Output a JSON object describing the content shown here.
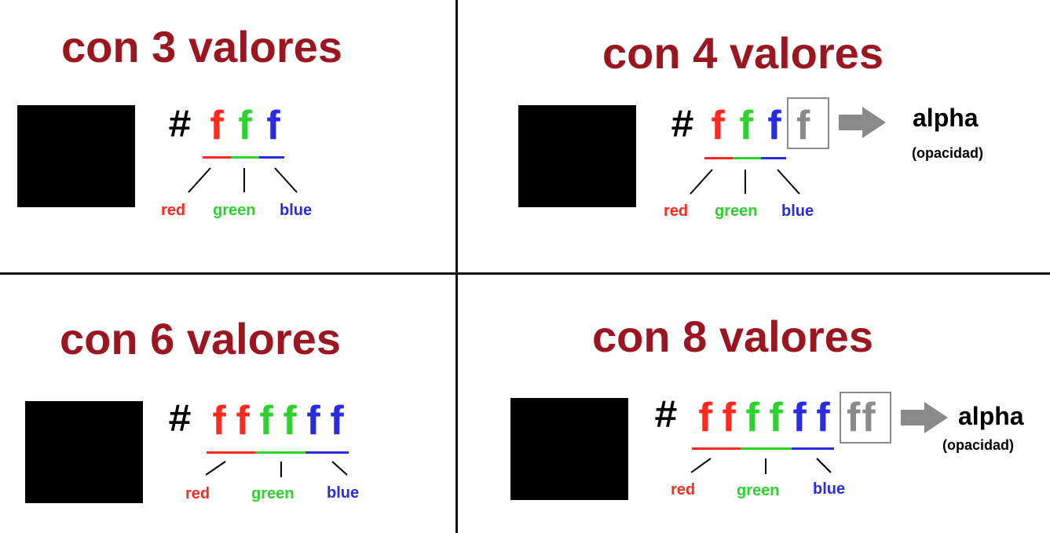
{
  "colors": {
    "red": "#ff2a1f",
    "green": "#2ed12e",
    "blue": "#2b2bdf",
    "alpha": "#8a8a8a",
    "title": "#9b1620"
  },
  "panels": {
    "p3": {
      "title": "con 3 valores",
      "hash": "#",
      "chars": [
        "f",
        "f",
        "f"
      ],
      "labels": {
        "red": "red",
        "green": "green",
        "blue": "blue"
      }
    },
    "p4": {
      "title": "con 4 valores",
      "hash": "#",
      "chars": [
        "f",
        "f",
        "f"
      ],
      "alpha_chars": "f",
      "labels": {
        "red": "red",
        "green": "green",
        "blue": "blue"
      },
      "alpha_word": "alpha",
      "opacity": "(opacidad)"
    },
    "p6": {
      "title": "con 6 valores",
      "hash": "#",
      "chars": [
        "f",
        "f",
        "f",
        "f",
        "f",
        "f"
      ],
      "labels": {
        "red": "red",
        "green": "green",
        "blue": "blue"
      }
    },
    "p8": {
      "title": "con 8 valores",
      "hash": "#",
      "chars": [
        "f",
        "f",
        "f",
        "f",
        "f",
        "f"
      ],
      "alpha_chars": "ff",
      "labels": {
        "red": "red",
        "green": "green",
        "blue": "blue"
      },
      "alpha_word": "alpha",
      "opacity": "(opacidad)"
    }
  }
}
